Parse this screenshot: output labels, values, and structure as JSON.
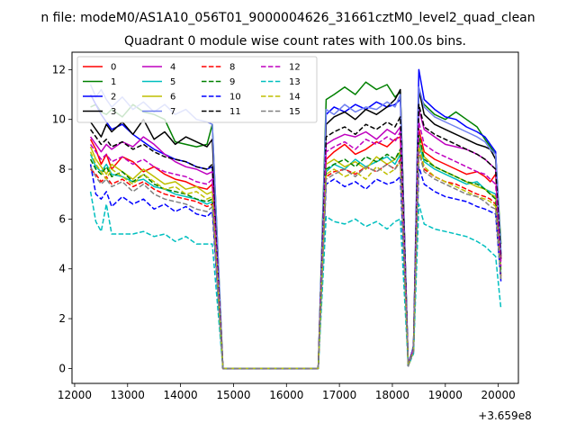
{
  "suptitle": "n file: modeM0/AS1A10_056T01_9000004626_31661cztM0_level2_quad_clean",
  "chart_data": {
    "type": "line",
    "title": "Quadrant 0 module wise count rates with 100.0s bins.",
    "xlabel": "",
    "ylabel": "",
    "x_offset_label": "+3.659e8",
    "xlim": [
      11950,
      20380
    ],
    "ylim": [
      -0.6,
      12.7
    ],
    "x_ticks": [
      12000,
      13000,
      14000,
      15000,
      16000,
      17000,
      18000,
      19000,
      20000
    ],
    "y_ticks": [
      0,
      2,
      4,
      6,
      8,
      10,
      12
    ],
    "grid": false,
    "legend_position": "top-left",
    "legend_columns": 4,
    "series": [
      {
        "name": "0",
        "color": "#ff0000",
        "dash": "solid",
        "values": [
          9.2,
          8.8,
          8.2,
          8.6,
          8.0,
          8.5,
          8.3,
          7.9,
          8.1,
          7.8,
          7.6,
          7.5,
          7.3,
          7.2,
          7.4,
          0.0,
          0.0,
          0.0,
          0.0,
          0.0,
          0.0,
          0.0,
          8.4,
          8.7,
          9.0,
          8.6,
          8.8,
          9.1,
          8.9,
          9.2,
          9.3,
          0.1,
          0.8,
          9.6,
          8.7,
          8.4,
          8.2,
          8.0,
          7.8,
          7.9,
          7.7,
          7.5,
          7.8,
          4.4
        ]
      },
      {
        "name": "1",
        "color": "#008000",
        "dash": "solid",
        "values": [
          10.5,
          10.6,
          10.3,
          10.2,
          10.4,
          10.1,
          10.6,
          10.3,
          10.2,
          10.0,
          9.1,
          9.0,
          8.9,
          9.0,
          9.8,
          0.0,
          0.0,
          0.0,
          0.0,
          0.0,
          0.0,
          0.0,
          10.8,
          11.0,
          11.3,
          11.0,
          11.5,
          11.2,
          11.4,
          10.9,
          11.1,
          0.1,
          0.9,
          11.0,
          10.6,
          10.2,
          10.0,
          10.3,
          10.0,
          9.7,
          9.2,
          8.9,
          8.6,
          5.0
        ]
      },
      {
        "name": "2",
        "color": "#0000ff",
        "dash": "solid",
        "values": [
          11.0,
          10.6,
          10.2,
          9.9,
          9.6,
          9.8,
          9.4,
          9.1,
          8.8,
          8.6,
          8.4,
          8.3,
          8.1,
          8.0,
          8.1,
          0.0,
          0.0,
          0.0,
          0.0,
          0.0,
          0.0,
          0.0,
          10.2,
          10.5,
          10.3,
          10.6,
          10.4,
          10.7,
          10.5,
          10.6,
          10.8,
          0.1,
          0.9,
          12.0,
          10.8,
          10.4,
          10.1,
          10.0,
          9.7,
          9.5,
          9.3,
          9.0,
          8.7,
          4.6
        ]
      },
      {
        "name": "3",
        "color": "#000000",
        "dash": "solid",
        "values": [
          9.9,
          9.6,
          9.3,
          9.8,
          9.5,
          9.9,
          9.4,
          10.0,
          9.2,
          9.5,
          9.0,
          9.3,
          9.1,
          8.9,
          9.2,
          0.0,
          0.0,
          0.0,
          0.0,
          0.0,
          0.0,
          0.0,
          9.8,
          10.1,
          10.3,
          10.0,
          10.4,
          10.2,
          10.5,
          10.8,
          11.2,
          0.1,
          0.9,
          11.2,
          10.2,
          9.8,
          9.6,
          9.4,
          9.2,
          9.0,
          8.9,
          8.8,
          8.4,
          4.5
        ]
      },
      {
        "name": "4",
        "color": "#bf00bf",
        "dash": "solid",
        "values": [
          9.3,
          9.0,
          8.7,
          9.0,
          8.8,
          9.1,
          8.9,
          9.3,
          9.0,
          8.6,
          8.3,
          8.1,
          8.0,
          7.8,
          7.9,
          0.0,
          0.0,
          0.0,
          0.0,
          0.0,
          0.0,
          0.0,
          9.0,
          9.2,
          9.4,
          9.3,
          9.5,
          9.2,
          9.6,
          9.4,
          9.7,
          0.1,
          0.8,
          10.4,
          9.6,
          9.3,
          9.0,
          8.9,
          8.8,
          8.6,
          8.4,
          8.2,
          8.0,
          4.3
        ]
      },
      {
        "name": "5",
        "color": "#00bfbf",
        "dash": "solid",
        "values": [
          8.6,
          8.1,
          7.9,
          8.2,
          7.8,
          7.7,
          7.5,
          7.6,
          7.3,
          7.2,
          7.0,
          6.9,
          6.8,
          6.6,
          6.7,
          0.0,
          0.0,
          0.0,
          0.0,
          0.0,
          0.0,
          0.0,
          7.9,
          8.2,
          8.0,
          8.4,
          8.1,
          8.3,
          8.5,
          8.2,
          8.6,
          0.1,
          0.7,
          9.0,
          8.3,
          8.0,
          7.8,
          7.6,
          7.4,
          7.5,
          7.2,
          7.1,
          7.0,
          3.8
        ]
      },
      {
        "name": "6",
        "color": "#bfbf00",
        "dash": "solid",
        "values": [
          8.9,
          8.4,
          8.1,
          7.8,
          8.2,
          7.9,
          7.6,
          8.0,
          7.7,
          7.4,
          7.5,
          7.2,
          7.3,
          7.0,
          7.1,
          0.0,
          0.0,
          0.0,
          0.0,
          0.0,
          0.0,
          0.0,
          8.2,
          8.4,
          8.1,
          8.3,
          8.0,
          8.5,
          8.2,
          8.4,
          8.7,
          0.1,
          0.8,
          9.2,
          8.5,
          8.1,
          7.9,
          7.7,
          7.5,
          7.3,
          7.2,
          7.0,
          6.9,
          4.0
        ]
      },
      {
        "name": "7",
        "color": "#7080f0",
        "dash": "solid",
        "values": [
          11.4,
          10.9,
          11.2,
          10.8,
          10.5,
          10.9,
          10.4,
          10.7,
          10.3,
          10.6,
          10.2,
          10.4,
          10.0,
          9.9,
          9.8,
          0.0,
          0.0,
          0.0,
          0.0,
          0.0,
          0.0,
          0.0,
          10.4,
          10.2,
          10.6,
          10.3,
          10.5,
          10.4,
          10.7,
          10.5,
          11.0,
          0.1,
          0.9,
          11.3,
          10.5,
          10.1,
          9.9,
          9.7,
          9.5,
          9.3,
          9.1,
          8.8,
          8.6,
          4.7
        ]
      },
      {
        "name": "8",
        "color": "#ff0000",
        "dash": "dashed",
        "values": [
          8.0,
          7.8,
          7.5,
          7.7,
          7.4,
          7.6,
          7.3,
          7.5,
          7.2,
          7.0,
          6.9,
          6.8,
          6.7,
          6.5,
          6.6,
          0.0,
          0.0,
          0.0,
          0.0,
          0.0,
          0.0,
          0.0,
          7.7,
          7.9,
          8.0,
          7.8,
          8.1,
          7.9,
          8.2,
          8.0,
          8.4,
          0.1,
          0.7,
          8.8,
          8.0,
          7.7,
          7.5,
          7.4,
          7.2,
          7.0,
          6.9,
          6.8,
          6.6,
          3.7
        ]
      },
      {
        "name": "9",
        "color": "#008000",
        "dash": "dashed",
        "values": [
          8.4,
          8.0,
          7.8,
          8.1,
          7.7,
          7.9,
          7.5,
          7.8,
          7.4,
          7.2,
          7.1,
          7.0,
          6.8,
          6.7,
          6.8,
          0.0,
          0.0,
          0.0,
          0.0,
          0.0,
          0.0,
          0.0,
          8.0,
          8.2,
          8.4,
          8.1,
          8.5,
          8.3,
          8.6,
          8.4,
          8.8,
          0.1,
          0.7,
          9.4,
          8.4,
          8.1,
          7.9,
          7.7,
          7.5,
          7.4,
          7.2,
          7.0,
          6.8,
          3.9
        ]
      },
      {
        "name": "10",
        "color": "#0000ff",
        "dash": "dashed",
        "values": [
          8.2,
          7.0,
          6.8,
          7.1,
          6.5,
          6.9,
          6.6,
          6.8,
          6.4,
          6.6,
          6.3,
          6.5,
          6.2,
          6.1,
          6.3,
          0.0,
          0.0,
          0.0,
          0.0,
          0.0,
          0.0,
          0.0,
          7.4,
          7.6,
          7.3,
          7.5,
          7.2,
          7.6,
          7.4,
          7.5,
          7.7,
          0.1,
          0.7,
          8.1,
          7.4,
          7.1,
          6.9,
          6.8,
          6.7,
          6.5,
          6.4,
          6.3,
          6.2,
          3.5
        ]
      },
      {
        "name": "11",
        "color": "#000000",
        "dash": "dashed",
        "values": [
          9.6,
          9.3,
          9.0,
          9.2,
          8.9,
          9.1,
          8.8,
          9.0,
          8.7,
          8.5,
          8.4,
          8.3,
          8.1,
          8.0,
          8.2,
          0.0,
          0.0,
          0.0,
          0.0,
          0.0,
          0.0,
          0.0,
          9.3,
          9.5,
          9.7,
          9.4,
          9.8,
          9.6,
          9.9,
          9.7,
          10.1,
          0.1,
          0.8,
          10.6,
          9.7,
          9.4,
          9.2,
          9.0,
          8.8,
          8.6,
          8.4,
          8.2,
          8.0,
          4.4
        ]
      },
      {
        "name": "12",
        "color": "#bf00bf",
        "dash": "dashed",
        "values": [
          9.0,
          8.7,
          8.4,
          8.6,
          8.3,
          8.5,
          8.2,
          8.4,
          8.1,
          7.9,
          7.8,
          7.7,
          7.5,
          7.4,
          7.6,
          0.0,
          0.0,
          0.0,
          0.0,
          0.0,
          0.0,
          0.0,
          8.7,
          8.9,
          9.1,
          8.8,
          9.2,
          9.0,
          9.3,
          9.1,
          9.5,
          0.1,
          0.8,
          9.9,
          9.0,
          8.7,
          8.5,
          8.3,
          8.1,
          7.9,
          7.8,
          7.6,
          7.4,
          4.1
        ]
      },
      {
        "name": "13",
        "color": "#00bfbf",
        "dash": "dashed",
        "values": [
          7.1,
          5.9,
          5.5,
          6.6,
          5.4,
          5.4,
          5.4,
          5.5,
          5.3,
          5.4,
          5.1,
          5.3,
          5.0,
          5.0,
          5.0,
          0.0,
          0.0,
          0.0,
          0.0,
          0.0,
          0.0,
          0.0,
          6.1,
          5.9,
          5.8,
          6.0,
          5.7,
          5.9,
          5.6,
          5.9,
          6.0,
          0.1,
          0.6,
          6.6,
          5.8,
          5.6,
          5.5,
          5.4,
          5.3,
          5.1,
          4.9,
          4.7,
          4.5,
          2.4
        ]
      },
      {
        "name": "14",
        "color": "#bfbf00",
        "dash": "dashed",
        "values": [
          8.7,
          8.2,
          7.9,
          7.6,
          8.0,
          7.7,
          7.4,
          7.8,
          7.5,
          7.2,
          7.3,
          7.0,
          7.1,
          6.8,
          6.9,
          0.0,
          0.0,
          0.0,
          0.0,
          0.0,
          0.0,
          0.0,
          7.8,
          8.0,
          7.7,
          7.9,
          7.6,
          8.1,
          7.8,
          8.0,
          8.3,
          0.1,
          0.7,
          8.9,
          8.1,
          7.7,
          7.5,
          7.3,
          7.1,
          6.9,
          6.8,
          6.7,
          6.5,
          3.6
        ]
      },
      {
        "name": "15",
        "color": "#808080",
        "dash": "dashed",
        "values": [
          8.1,
          7.7,
          7.4,
          7.6,
          7.3,
          7.5,
          7.1,
          7.4,
          7.0,
          6.8,
          6.7,
          6.6,
          6.4,
          6.3,
          6.5,
          0.0,
          0.0,
          0.0,
          0.0,
          0.0,
          0.0,
          0.0,
          7.6,
          7.8,
          8.0,
          7.7,
          8.1,
          7.9,
          8.2,
          8.0,
          8.3,
          0.1,
          0.7,
          8.7,
          7.9,
          7.6,
          7.4,
          7.2,
          7.0,
          6.9,
          6.7,
          6.5,
          6.4,
          3.6
        ]
      }
    ],
    "x": [
      12300,
      12400,
      12500,
      12600,
      12700,
      12900,
      13100,
      13300,
      13500,
      13700,
      13900,
      14100,
      14300,
      14500,
      14600,
      14800,
      15200,
      15600,
      16000,
      16400,
      16500,
      16600,
      16750,
      16900,
      17100,
      17300,
      17500,
      17700,
      17900,
      18050,
      18150,
      18300,
      18400,
      18500,
      18600,
      18800,
      19000,
      19200,
      19400,
      19600,
      19750,
      19850,
      19950,
      20050
    ]
  }
}
